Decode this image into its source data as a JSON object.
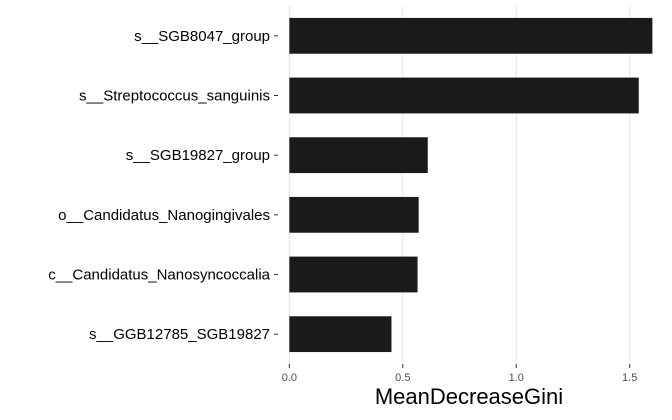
{
  "chart_data": {
    "type": "bar",
    "orientation": "horizontal",
    "categories": [
      "s__SGB8047_group",
      "s__Streptococcus_sanguinis",
      "s__SGB19827_group",
      "o__Candidatus_Nanogingivales",
      "c__Candidatus_Nanosyncoccalia",
      "s__GGB12785_SGB19827"
    ],
    "values": [
      1.6,
      1.54,
      0.61,
      0.57,
      0.565,
      0.45
    ],
    "title": "",
    "xlabel": "MeanDecreaseGini",
    "ylabel": "",
    "xlim": [
      -0.05,
      1.66
    ],
    "xticks": [
      0.0,
      0.5,
      1.0,
      1.5
    ],
    "xtick_labels": [
      "0.0",
      "0.5",
      "1.0",
      "1.5"
    ],
    "grid": "vertical major",
    "bar_color": "#1a1a1a",
    "grid_color": "#e5e5e5"
  }
}
